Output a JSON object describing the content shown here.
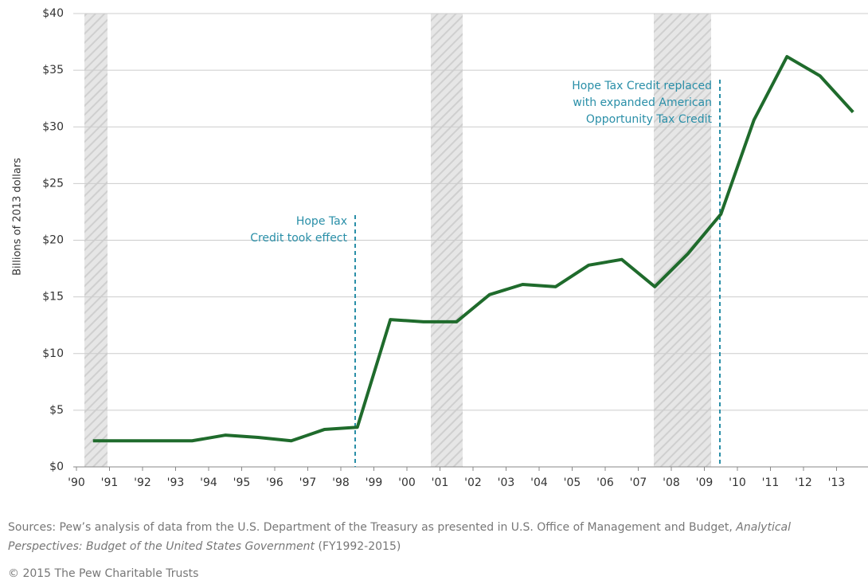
{
  "chart_data": {
    "type": "line",
    "y_label": "Billions of 2013 dollars",
    "categories": [
      "'90",
      "'91",
      "'92",
      "'93",
      "'94",
      "'95",
      "'96",
      "'97",
      "'98",
      "'99",
      "'00",
      "'01",
      "'02",
      "'03",
      "'04",
      "'05",
      "'06",
      "'07",
      "'08",
      "'09",
      "'10",
      "'11",
      "'12",
      "'13"
    ],
    "series": [
      {
        "color": "#1f6b2c",
        "values": [
          2.3,
          2.3,
          2.3,
          2.3,
          2.8,
          2.6,
          2.3,
          3.3,
          3.5,
          13.0,
          12.8,
          12.8,
          15.2,
          16.1,
          15.9,
          17.8,
          18.3,
          15.9,
          18.8,
          22.3,
          30.6,
          36.2,
          34.5,
          31.3
        ]
      }
    ],
    "ylim": [
      0,
      40
    ],
    "yticks": [
      {
        "value": 0,
        "label": "$0"
      },
      {
        "value": 5,
        "label": "$5"
      },
      {
        "value": 10,
        "label": "$10"
      },
      {
        "value": 15,
        "label": "$15"
      },
      {
        "value": 20,
        "label": "$20"
      },
      {
        "value": 25,
        "label": "$25"
      },
      {
        "value": 30,
        "label": "$30"
      },
      {
        "value": 35,
        "label": "$35"
      },
      {
        "value": 40,
        "label": "$40"
      }
    ],
    "grid": true,
    "annotations": [
      {
        "lines": [
          "Hope Tax",
          "Credit took effect"
        ]
      },
      {
        "lines": [
          "Hope Tax Credit replaced",
          "with expanded American",
          "Opportunity Tax Credit"
        ]
      }
    ]
  },
  "footer": {
    "source": [
      "Sources: Pew’s analysis of data from the U.S. Department of the Treasury as presented in U.S. Office of Management and Budget, ",
      "Analytical Perspectives: Budget of the United States Government",
      " (FY1992-2015)"
    ],
    "copyright": "© 2015 The Pew Charitable Trusts"
  }
}
